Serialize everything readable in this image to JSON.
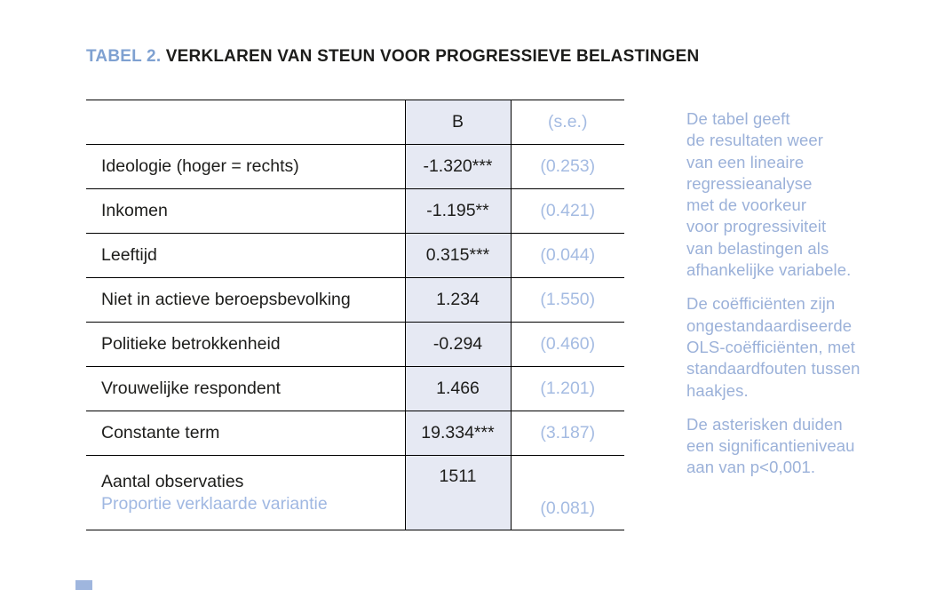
{
  "title": {
    "prefix": "TABEL 2.",
    "rest": " VERKLAREN VAN STEUN VOOR PROGRESSIEVE BELASTINGEN"
  },
  "table": {
    "columns": {
      "label": "",
      "b": "B",
      "se": "(s.e.)"
    },
    "rows": [
      {
        "label": "Ideologie (hoger = rechts)",
        "b": "-1.320***",
        "se": "(0.253)"
      },
      {
        "label": "Inkomen",
        "b": "-1.195**",
        "se": "(0.421)"
      },
      {
        "label": "Leeftijd",
        "b": "0.315***",
        "se": "(0.044)"
      },
      {
        "label": "Niet in actieve beroepsbevolking",
        "b": "1.234",
        "se": "(1.550)"
      },
      {
        "label": "Politieke betrokkenheid",
        "b": "-0.294",
        "se": "(0.460)"
      },
      {
        "label": "Vrouwelijke respondent",
        "b": "1.466",
        "se": "(1.201)"
      },
      {
        "label": "Constante term",
        "b": "19.334***",
        "se": "(3.187)"
      }
    ],
    "footer": {
      "label_line1": "Aantal observaties",
      "label_line2": "Proportie verklaarde variantie",
      "b": "1511",
      "se": "(0.081)"
    }
  },
  "notes": {
    "p1": "De tabel geeft\nde resultaten weer\nvan een lineaire\nregressieanalyse\nmet de voorkeur\nvoor progressiviteit\nvan belastingen als\nafhankelijke variabele.",
    "p2": "De coëfficiënten zijn\nongestandaardiseerde\nOLS-coëfficiënten, met\nstandaardfouten tussen\nhaakjes.",
    "p3": "De asterisken duiden\neen significantieniveau\naan van p<0,001."
  },
  "colors": {
    "title_blue": "#7fa1d1",
    "table_value_blue": "#a4bbe2",
    "note_blue": "#9bb1d9",
    "b_column_shade": "#e6e9f3",
    "text_black": "#1d1d1b",
    "border_black": "#000000",
    "page_marker_blue": "#9fb6de"
  }
}
